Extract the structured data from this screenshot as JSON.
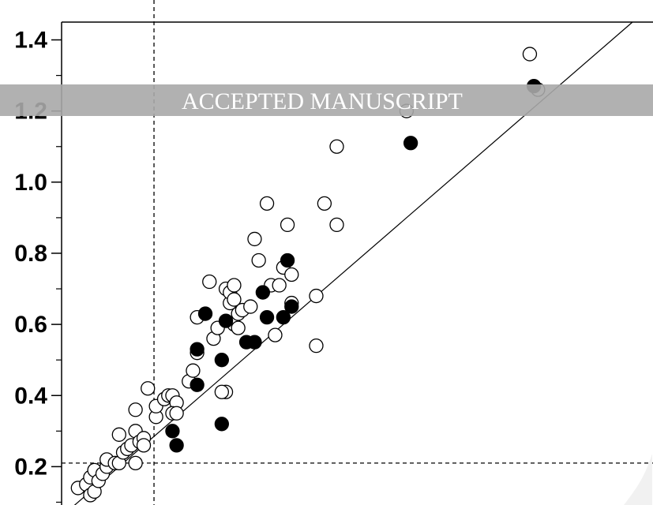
{
  "chart_data": {
    "type": "scatter",
    "title": "",
    "xlabel": "",
    "ylabel": "",
    "ylim": [
      0.05,
      1.45
    ],
    "xlim": [
      0.06,
      1.5
    ],
    "yticks": [
      0.2,
      0.4,
      0.6,
      0.8,
      1.0,
      1.2,
      1.4
    ],
    "ytick_labels": [
      "0.2",
      "0.4",
      "0.6",
      "0.8",
      "1.0",
      "1.2",
      "1.4"
    ],
    "grid": false,
    "legend": "none",
    "reference_lines": {
      "vertical_x": 0.285,
      "horizontal_y": 0.21
    },
    "fit_line": {
      "slope": 1.0,
      "intercept": 0.0
    },
    "series": [
      {
        "marker": "open-circle",
        "points": [
          [
            0.1,
            0.14
          ],
          [
            0.12,
            0.15
          ],
          [
            0.13,
            0.12
          ],
          [
            0.14,
            0.13
          ],
          [
            0.13,
            0.17
          ],
          [
            0.14,
            0.19
          ],
          [
            0.15,
            0.16
          ],
          [
            0.16,
            0.18
          ],
          [
            0.17,
            0.2
          ],
          [
            0.17,
            0.22
          ],
          [
            0.19,
            0.21
          ],
          [
            0.2,
            0.21
          ],
          [
            0.2,
            0.29
          ],
          [
            0.21,
            0.24
          ],
          [
            0.22,
            0.25
          ],
          [
            0.23,
            0.26
          ],
          [
            0.24,
            0.21
          ],
          [
            0.24,
            0.3
          ],
          [
            0.25,
            0.27
          ],
          [
            0.26,
            0.28
          ],
          [
            0.26,
            0.26
          ],
          [
            0.27,
            0.42
          ],
          [
            0.24,
            0.36
          ],
          [
            0.29,
            0.34
          ],
          [
            0.29,
            0.37
          ],
          [
            0.31,
            0.39
          ],
          [
            0.32,
            0.4
          ],
          [
            0.33,
            0.4
          ],
          [
            0.34,
            0.38
          ],
          [
            0.33,
            0.35
          ],
          [
            0.34,
            0.35
          ],
          [
            0.37,
            0.44
          ],
          [
            0.38,
            0.47
          ],
          [
            0.39,
            0.52
          ],
          [
            0.39,
            0.62
          ],
          [
            0.42,
            0.72
          ],
          [
            0.43,
            0.56
          ],
          [
            0.44,
            0.59
          ],
          [
            0.46,
            0.7
          ],
          [
            0.47,
            0.66
          ],
          [
            0.47,
            0.69
          ],
          [
            0.48,
            0.67
          ],
          [
            0.48,
            0.71
          ],
          [
            0.48,
            0.6
          ],
          [
            0.49,
            0.59
          ],
          [
            0.49,
            0.63
          ],
          [
            0.5,
            0.64
          ],
          [
            0.52,
            0.65
          ],
          [
            0.46,
            0.41
          ],
          [
            0.45,
            0.41
          ],
          [
            0.53,
            0.84
          ],
          [
            0.54,
            0.78
          ],
          [
            0.56,
            0.94
          ],
          [
            0.57,
            0.71
          ],
          [
            0.58,
            0.57
          ],
          [
            0.59,
            0.71
          ],
          [
            0.6,
            0.76
          ],
          [
            0.61,
            0.88
          ],
          [
            0.62,
            0.66
          ],
          [
            0.62,
            0.74
          ],
          [
            0.68,
            0.54
          ],
          [
            0.68,
            0.68
          ],
          [
            0.7,
            0.94
          ],
          [
            0.73,
            0.88
          ],
          [
            0.73,
            1.1
          ],
          [
            0.9,
            1.2
          ],
          [
            1.2,
            1.36
          ],
          [
            1.22,
            1.26
          ]
        ]
      },
      {
        "marker": "filled-circle",
        "points": [
          [
            0.33,
            0.3
          ],
          [
            0.34,
            0.26
          ],
          [
            0.39,
            0.43
          ],
          [
            0.39,
            0.53
          ],
          [
            0.41,
            0.63
          ],
          [
            0.45,
            0.5
          ],
          [
            0.45,
            0.32
          ],
          [
            0.46,
            0.61
          ],
          [
            0.51,
            0.55
          ],
          [
            0.53,
            0.55
          ],
          [
            0.55,
            0.69
          ],
          [
            0.56,
            0.62
          ],
          [
            0.6,
            0.62
          ],
          [
            0.61,
            0.78
          ],
          [
            0.62,
            0.65
          ],
          [
            0.91,
            1.11
          ],
          [
            1.21,
            1.27
          ]
        ]
      }
    ]
  },
  "watermark": {
    "banner_text": "ACCEPTED MANUSCRIPT"
  }
}
